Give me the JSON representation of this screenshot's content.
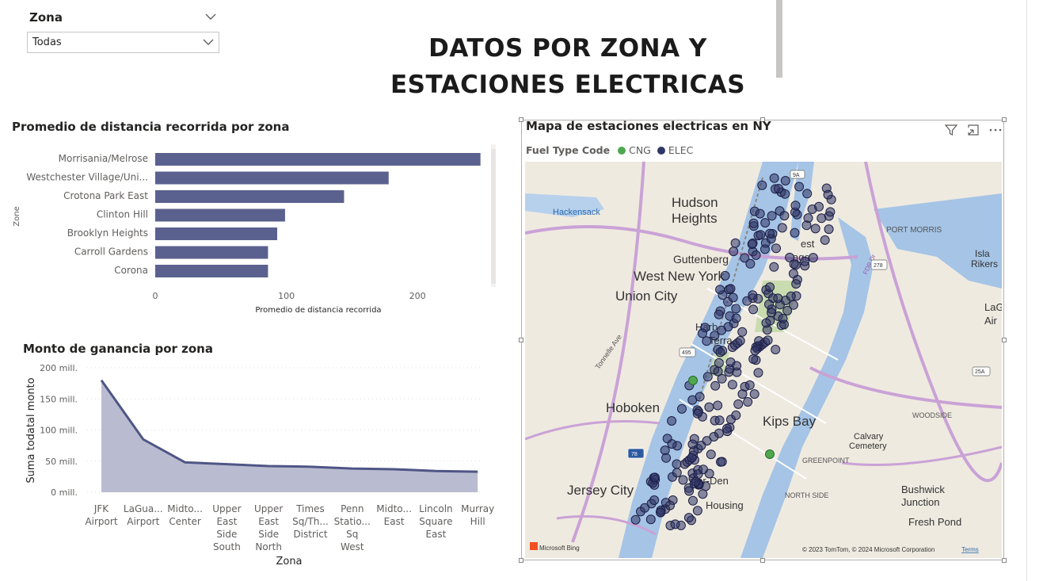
{
  "slicer": {
    "title": "Zona",
    "value": "Todas"
  },
  "page_title": {
    "line1": "DATOS POR ZONA Y",
    "line2": "ESTACIONES ELECTRICAS"
  },
  "colors": {
    "bar": "#5b618e",
    "area_fill": "#b9bcd0",
    "area_line": "#4f5585",
    "elec": "#2f3566",
    "cng": "#4fa84f"
  },
  "chart_data": [
    {
      "type": "bar",
      "title": "Promedio de distancia recorrida por zona",
      "ylabel": "Zone",
      "xlabel": "Promedio de distancia recorrida",
      "categories": [
        "Morrisania/Melrose",
        "Westchester Village/Uni...",
        "Crotona Park East",
        "Clinton Hill",
        "Brooklyn Heights",
        "Carroll Gardens",
        "Corona"
      ],
      "values": [
        248,
        178,
        144,
        99,
        93,
        86,
        86
      ],
      "xlim": [
        0,
        250
      ],
      "xticks": [
        0,
        100,
        200
      ]
    },
    {
      "type": "area",
      "title": "Monto de ganancia por zona",
      "ylabel": "Suma todatal monto",
      "xlabel": "Zona",
      "categories": [
        [
          "JFK",
          "Airport"
        ],
        [
          "LaGua...",
          "Airport"
        ],
        [
          "Midto...",
          "Center"
        ],
        [
          "Upper",
          "East",
          "Side",
          "South"
        ],
        [
          "Upper",
          "East",
          "Side",
          "North"
        ],
        [
          "Times",
          "Sq/Th...",
          "District"
        ],
        [
          "Penn",
          "Statio...",
          "Sq",
          "West"
        ],
        [
          "Midto...",
          "East"
        ],
        [
          "Lincoln",
          "Square",
          "East"
        ],
        [
          "Murray",
          "Hill"
        ]
      ],
      "values": [
        180,
        85,
        48,
        45,
        42,
        41,
        38,
        37,
        34,
        33
      ],
      "ylim": [
        0,
        200
      ],
      "yticks": [
        {
          "value": 0,
          "label": "0 mill."
        },
        {
          "value": 50,
          "label": "50 mill."
        },
        {
          "value": 100,
          "label": "100 mill."
        },
        {
          "value": 150,
          "label": "150 mill."
        },
        {
          "value": 200,
          "label": "200 mill."
        }
      ]
    }
  ],
  "map": {
    "title": "Mapa de estaciones electricas en NY",
    "legend_title": "Fuel Type Code",
    "legend": [
      {
        "label": "CNG",
        "color": "#4fa84f"
      },
      {
        "label": "ELEC",
        "color": "#2f3566"
      }
    ],
    "places": [
      "Hudson",
      "Heights",
      "Guttenberg",
      "West New York",
      "Union City",
      "Hoboken",
      "Jersey City",
      "Hackensack",
      "Kips Bay",
      "PORT MORRIS",
      "Isla",
      "Rikers",
      "LaGu",
      "Air",
      "WOODSIDE",
      "Calvary",
      "Cemetery",
      "GREENPOINT",
      "NORTH SIDE",
      "Bushwick",
      "Junction",
      "Fresh Pond",
      "Harb",
      "Terra",
      "est",
      "age",
      "ster-Den",
      "Housing",
      "FDR Dr"
    ],
    "roads": [
      "9A",
      "278",
      "495",
      "78",
      "25A",
      "Tonnelle Ave"
    ],
    "attribution": "© 2023 TomTom, © 2024 Microsoft Corporation",
    "terms": "Terms",
    "bing": "Microsoft Bing"
  }
}
